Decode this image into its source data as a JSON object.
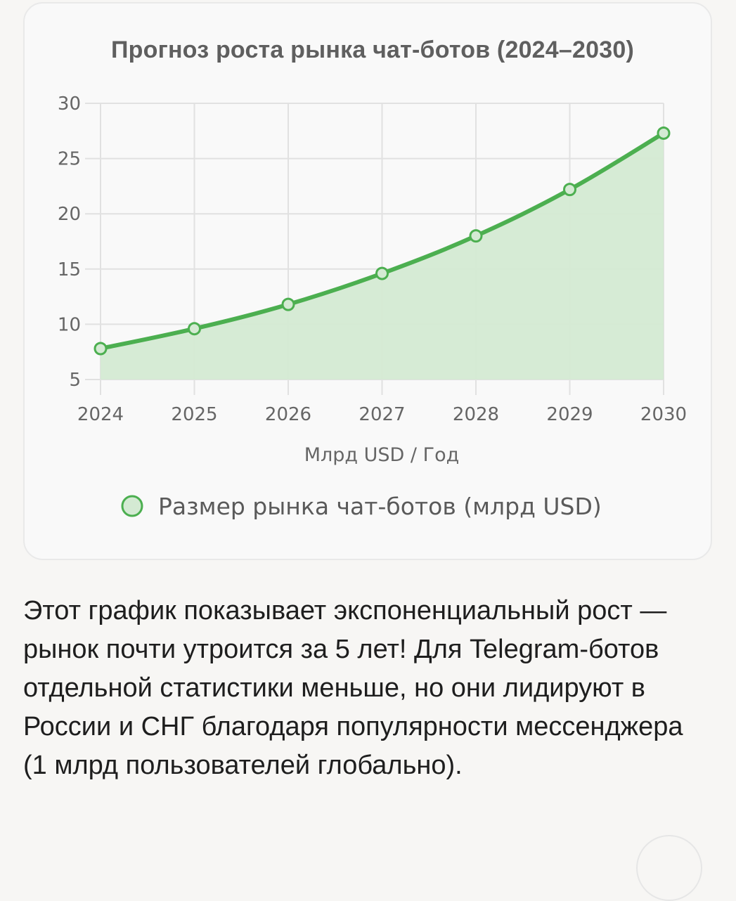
{
  "chart_data": {
    "type": "area",
    "title": "Прогноз роста рынка чат-ботов (2024–2030)",
    "xlabel": "Млрд USD / Год",
    "ylabel": "",
    "categories": [
      "2024",
      "2025",
      "2026",
      "2027",
      "2028",
      "2029",
      "2030"
    ],
    "ylim": [
      5,
      30
    ],
    "yticks": [
      5,
      10,
      15,
      20,
      25,
      30
    ],
    "grid": true,
    "legend_position": "bottom",
    "series": [
      {
        "name": "Размер рынка чат-ботов (млрд USD)",
        "values": [
          7.8,
          9.6,
          11.8,
          14.6,
          18.0,
          22.2,
          27.3
        ],
        "color": "#4caf50",
        "fill": "#d4ead3"
      }
    ]
  },
  "description": "Этот график показывает экспоненциальный рост — рынок почти утроится за 5 лет! Для Telegram-ботов отдельной статистики меньше, но они лидируют в России и СНГ благодаря популярности мессенджера (1 млрд пользователей глобально)."
}
